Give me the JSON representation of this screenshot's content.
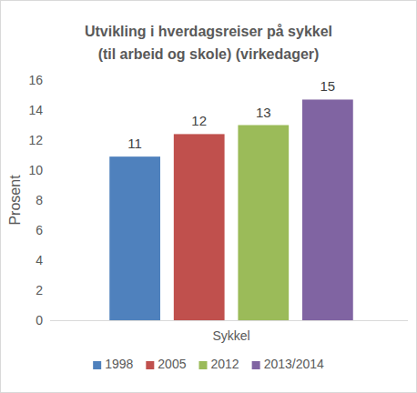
{
  "chart_data": {
    "type": "bar",
    "title": "Utvikling i hverdagsreiser på sykkel\n(til arbeid og skole) (virkedager)",
    "y_label": "Prosent",
    "categories": [
      "Sykkel"
    ],
    "series": [
      {
        "name": "1998",
        "color": "#4f81bd",
        "values": [
          10.9
        ],
        "value_labels": [
          "11"
        ]
      },
      {
        "name": "2005",
        "color": "#c0504d",
        "values": [
          12.4
        ],
        "value_labels": [
          "12"
        ]
      },
      {
        "name": "2012",
        "color": "#9bbb59",
        "values": [
          13.0
        ],
        "value_labels": [
          "13"
        ]
      },
      {
        "name": "2013/2014",
        "color": "#8064a2",
        "values": [
          14.7
        ],
        "value_labels": [
          "15"
        ]
      }
    ],
    "ylim": [
      0,
      16
    ],
    "yticks": [
      0,
      2,
      4,
      6,
      8,
      10,
      12,
      14,
      16
    ],
    "grid": false,
    "legend": "bottom",
    "data_labels": true
  }
}
